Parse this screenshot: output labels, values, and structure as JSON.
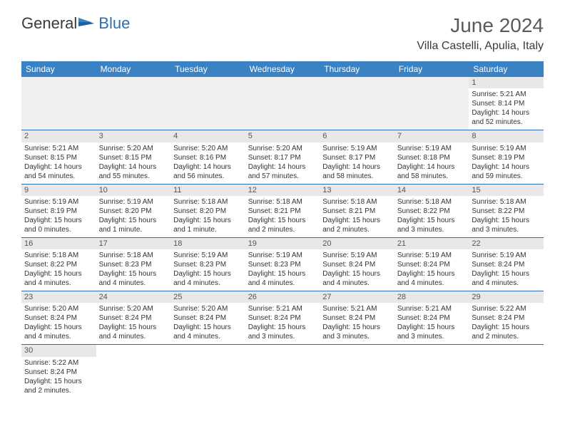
{
  "logo": {
    "part1": "General",
    "part2": "Blue"
  },
  "title": "June 2024",
  "location": "Villa Castelli, Apulia, Italy",
  "colors": {
    "header_bg": "#3b82c4",
    "header_text": "#ffffff",
    "border": "#2a6fb5",
    "daynum_bg": "#e8e8e8",
    "logo_blue": "#2a6fb5"
  },
  "day_headers": [
    "Sunday",
    "Monday",
    "Tuesday",
    "Wednesday",
    "Thursday",
    "Friday",
    "Saturday"
  ],
  "weeks": [
    [
      null,
      null,
      null,
      null,
      null,
      null,
      {
        "n": "1",
        "sr": "Sunrise: 5:21 AM",
        "ss": "Sunset: 8:14 PM",
        "dl": "Daylight: 14 hours and 52 minutes."
      }
    ],
    [
      {
        "n": "2",
        "sr": "Sunrise: 5:21 AM",
        "ss": "Sunset: 8:15 PM",
        "dl": "Daylight: 14 hours and 54 minutes."
      },
      {
        "n": "3",
        "sr": "Sunrise: 5:20 AM",
        "ss": "Sunset: 8:15 PM",
        "dl": "Daylight: 14 hours and 55 minutes."
      },
      {
        "n": "4",
        "sr": "Sunrise: 5:20 AM",
        "ss": "Sunset: 8:16 PM",
        "dl": "Daylight: 14 hours and 56 minutes."
      },
      {
        "n": "5",
        "sr": "Sunrise: 5:20 AM",
        "ss": "Sunset: 8:17 PM",
        "dl": "Daylight: 14 hours and 57 minutes."
      },
      {
        "n": "6",
        "sr": "Sunrise: 5:19 AM",
        "ss": "Sunset: 8:17 PM",
        "dl": "Daylight: 14 hours and 58 minutes."
      },
      {
        "n": "7",
        "sr": "Sunrise: 5:19 AM",
        "ss": "Sunset: 8:18 PM",
        "dl": "Daylight: 14 hours and 58 minutes."
      },
      {
        "n": "8",
        "sr": "Sunrise: 5:19 AM",
        "ss": "Sunset: 8:19 PM",
        "dl": "Daylight: 14 hours and 59 minutes."
      }
    ],
    [
      {
        "n": "9",
        "sr": "Sunrise: 5:19 AM",
        "ss": "Sunset: 8:19 PM",
        "dl": "Daylight: 15 hours and 0 minutes."
      },
      {
        "n": "10",
        "sr": "Sunrise: 5:19 AM",
        "ss": "Sunset: 8:20 PM",
        "dl": "Daylight: 15 hours and 1 minute."
      },
      {
        "n": "11",
        "sr": "Sunrise: 5:18 AM",
        "ss": "Sunset: 8:20 PM",
        "dl": "Daylight: 15 hours and 1 minute."
      },
      {
        "n": "12",
        "sr": "Sunrise: 5:18 AM",
        "ss": "Sunset: 8:21 PM",
        "dl": "Daylight: 15 hours and 2 minutes."
      },
      {
        "n": "13",
        "sr": "Sunrise: 5:18 AM",
        "ss": "Sunset: 8:21 PM",
        "dl": "Daylight: 15 hours and 2 minutes."
      },
      {
        "n": "14",
        "sr": "Sunrise: 5:18 AM",
        "ss": "Sunset: 8:22 PM",
        "dl": "Daylight: 15 hours and 3 minutes."
      },
      {
        "n": "15",
        "sr": "Sunrise: 5:18 AM",
        "ss": "Sunset: 8:22 PM",
        "dl": "Daylight: 15 hours and 3 minutes."
      }
    ],
    [
      {
        "n": "16",
        "sr": "Sunrise: 5:18 AM",
        "ss": "Sunset: 8:22 PM",
        "dl": "Daylight: 15 hours and 4 minutes."
      },
      {
        "n": "17",
        "sr": "Sunrise: 5:18 AM",
        "ss": "Sunset: 8:23 PM",
        "dl": "Daylight: 15 hours and 4 minutes."
      },
      {
        "n": "18",
        "sr": "Sunrise: 5:19 AM",
        "ss": "Sunset: 8:23 PM",
        "dl": "Daylight: 15 hours and 4 minutes."
      },
      {
        "n": "19",
        "sr": "Sunrise: 5:19 AM",
        "ss": "Sunset: 8:23 PM",
        "dl": "Daylight: 15 hours and 4 minutes."
      },
      {
        "n": "20",
        "sr": "Sunrise: 5:19 AM",
        "ss": "Sunset: 8:24 PM",
        "dl": "Daylight: 15 hours and 4 minutes."
      },
      {
        "n": "21",
        "sr": "Sunrise: 5:19 AM",
        "ss": "Sunset: 8:24 PM",
        "dl": "Daylight: 15 hours and 4 minutes."
      },
      {
        "n": "22",
        "sr": "Sunrise: 5:19 AM",
        "ss": "Sunset: 8:24 PM",
        "dl": "Daylight: 15 hours and 4 minutes."
      }
    ],
    [
      {
        "n": "23",
        "sr": "Sunrise: 5:20 AM",
        "ss": "Sunset: 8:24 PM",
        "dl": "Daylight: 15 hours and 4 minutes."
      },
      {
        "n": "24",
        "sr": "Sunrise: 5:20 AM",
        "ss": "Sunset: 8:24 PM",
        "dl": "Daylight: 15 hours and 4 minutes."
      },
      {
        "n": "25",
        "sr": "Sunrise: 5:20 AM",
        "ss": "Sunset: 8:24 PM",
        "dl": "Daylight: 15 hours and 4 minutes."
      },
      {
        "n": "26",
        "sr": "Sunrise: 5:21 AM",
        "ss": "Sunset: 8:24 PM",
        "dl": "Daylight: 15 hours and 3 minutes."
      },
      {
        "n": "27",
        "sr": "Sunrise: 5:21 AM",
        "ss": "Sunset: 8:24 PM",
        "dl": "Daylight: 15 hours and 3 minutes."
      },
      {
        "n": "28",
        "sr": "Sunrise: 5:21 AM",
        "ss": "Sunset: 8:24 PM",
        "dl": "Daylight: 15 hours and 3 minutes."
      },
      {
        "n": "29",
        "sr": "Sunrise: 5:22 AM",
        "ss": "Sunset: 8:24 PM",
        "dl": "Daylight: 15 hours and 2 minutes."
      }
    ],
    [
      {
        "n": "30",
        "sr": "Sunrise: 5:22 AM",
        "ss": "Sunset: 8:24 PM",
        "dl": "Daylight: 15 hours and 2 minutes."
      },
      null,
      null,
      null,
      null,
      null,
      null
    ]
  ]
}
